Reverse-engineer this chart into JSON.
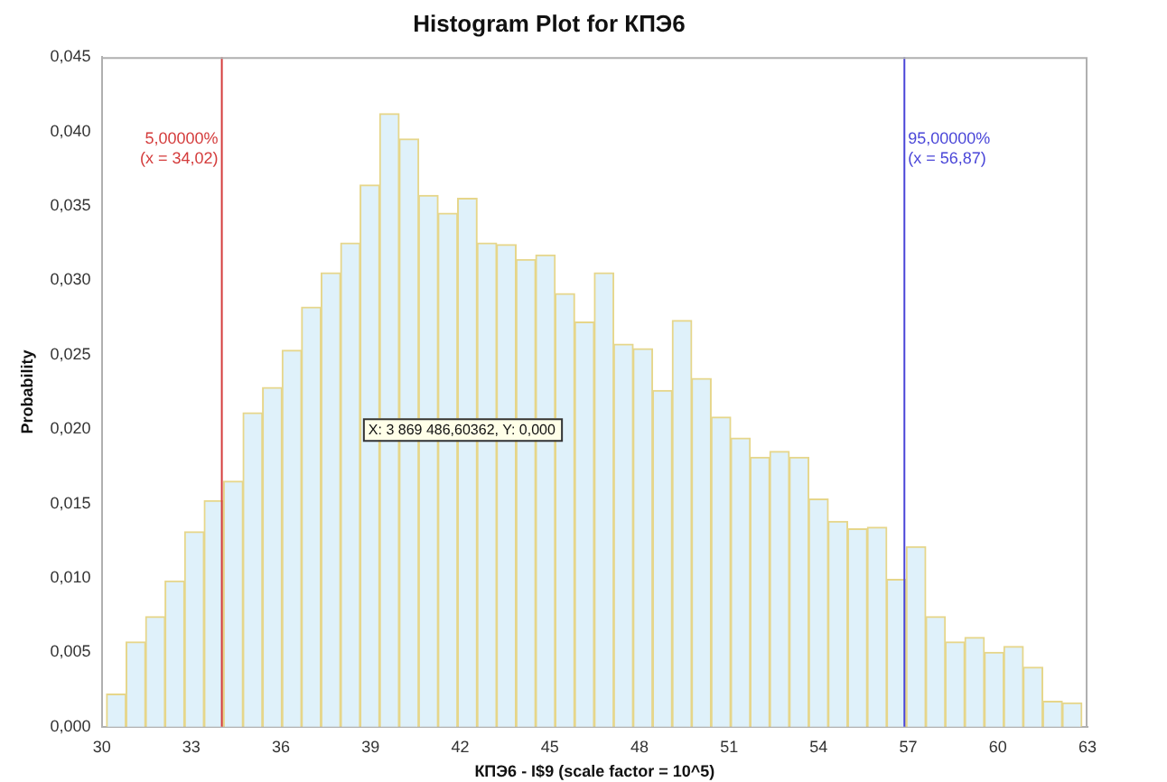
{
  "chart_data": {
    "type": "histogram",
    "title": "Histogram Plot for КПЭ6",
    "xlabel": "КПЭ6 - I$9 (scale factor = 10^5)",
    "ylabel": "Probability",
    "bins": [
      30.16,
      30.81,
      31.47,
      32.12,
      32.77,
      33.43,
      34.08,
      34.73,
      35.38,
      36.04,
      36.69,
      37.34,
      38.0,
      38.65,
      39.3,
      39.96,
      40.61,
      41.26,
      41.91,
      42.57,
      43.22,
      43.87,
      44.53,
      45.18,
      45.83,
      46.49,
      47.14,
      47.79,
      48.44,
      49.1,
      49.75,
      50.4,
      51.06,
      51.71,
      52.36,
      53.02,
      53.67,
      54.32,
      54.97,
      55.63,
      56.28,
      56.93,
      57.59,
      58.24,
      58.89,
      59.55,
      60.2,
      60.85,
      61.5,
      62.16,
      62.81
    ],
    "values": [
      0.0022,
      0.0057,
      0.0074,
      0.0098,
      0.0131,
      0.0152,
      0.0165,
      0.0211,
      0.0228,
      0.0253,
      0.0282,
      0.0305,
      0.0325,
      0.0364,
      0.0412,
      0.0395,
      0.0357,
      0.0345,
      0.0355,
      0.0325,
      0.0324,
      0.0314,
      0.0317,
      0.0291,
      0.0272,
      0.0305,
      0.0257,
      0.0254,
      0.0226,
      0.0273,
      0.0234,
      0.0208,
      0.0194,
      0.0181,
      0.0185,
      0.0181,
      0.0153,
      0.0138,
      0.0133,
      0.0134,
      0.0099,
      0.0121,
      0.0074,
      0.0057,
      0.006,
      0.005,
      0.0054,
      0.004,
      0.0017,
      0.0016
    ],
    "color": "#dff1fa",
    "xlim": [
      30,
      63
    ],
    "xticks": [
      30,
      33,
      36,
      39,
      42,
      45,
      48,
      51,
      54,
      57,
      60,
      63
    ],
    "ylim": [
      0,
      0.045
    ],
    "yticks": [
      {
        "value": 0,
        "label": "0,000"
      },
      {
        "value": 0.005,
        "label": "0,005"
      },
      {
        "value": 0.01,
        "label": "0,010"
      },
      {
        "value": 0.015,
        "label": "0,015"
      },
      {
        "value": 0.02,
        "label": "0,020"
      },
      {
        "value": 0.025,
        "label": "0,025"
      },
      {
        "value": 0.03,
        "label": "0,030"
      },
      {
        "value": 0.035,
        "label": "0,035"
      },
      {
        "value": 0.04,
        "label": "0,040"
      },
      {
        "value": 0.045,
        "label": "0,045"
      }
    ],
    "ref_lines": [
      {
        "axis": "x",
        "value": 34.02,
        "label": "5,00000%\n(x = 34,02)",
        "color": "#d43c3c"
      },
      {
        "axis": "x",
        "value": 56.87,
        "label": "95,00000%\n(x = 56,87)",
        "color": "#4a46d8"
      }
    ],
    "annotations": [
      "X: 3 869 486,60362, Y: 0,000"
    ],
    "grid": false,
    "legend": false
  }
}
